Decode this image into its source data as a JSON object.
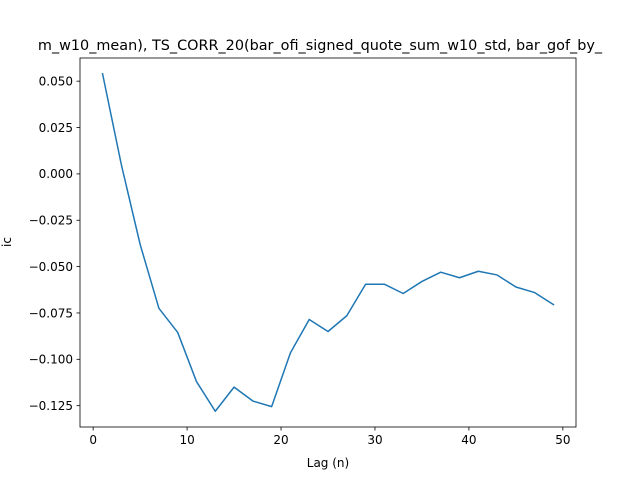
{
  "chart_data": {
    "type": "line",
    "title": "m_w10_mean), TS_CORR_20(bar_ofi_signed_quote_sum_w10_std, bar_gof_by_",
    "xlabel": "Lag (n)",
    "ylabel": "ic",
    "xlim": [
      -1.4,
      51.4
    ],
    "ylim": [
      -0.1365,
      0.0625
    ],
    "x_ticks": [
      0,
      10,
      20,
      30,
      40,
      50
    ],
    "y_ticks": [
      0.05,
      0.025,
      0.0,
      -0.025,
      -0.05,
      -0.075,
      -0.1,
      -0.125
    ],
    "x_tick_labels": [
      "0",
      "10",
      "20",
      "30",
      "40",
      "50"
    ],
    "y_tick_labels": [
      "0.050",
      "0.025",
      "0.000",
      "−0.025",
      "−0.050",
      "−0.075",
      "−0.100",
      "−0.125"
    ],
    "grid": false,
    "series": [
      {
        "color": "#1f77b4",
        "x": [
          1,
          3,
          5,
          7,
          9,
          11,
          13,
          15,
          17,
          19,
          21,
          23,
          25,
          27,
          29,
          31,
          33,
          35,
          37,
          39,
          41,
          43,
          45,
          47,
          49
        ],
        "y": [
          0.054,
          0.005,
          -0.038,
          -0.0725,
          -0.0855,
          -0.112,
          -0.128,
          -0.115,
          -0.1225,
          -0.1255,
          -0.0965,
          -0.0785,
          -0.085,
          -0.0765,
          -0.0595,
          -0.0595,
          -0.0645,
          -0.058,
          -0.053,
          -0.056,
          -0.0525,
          -0.0545,
          -0.061,
          -0.064,
          -0.0705
        ]
      }
    ]
  }
}
